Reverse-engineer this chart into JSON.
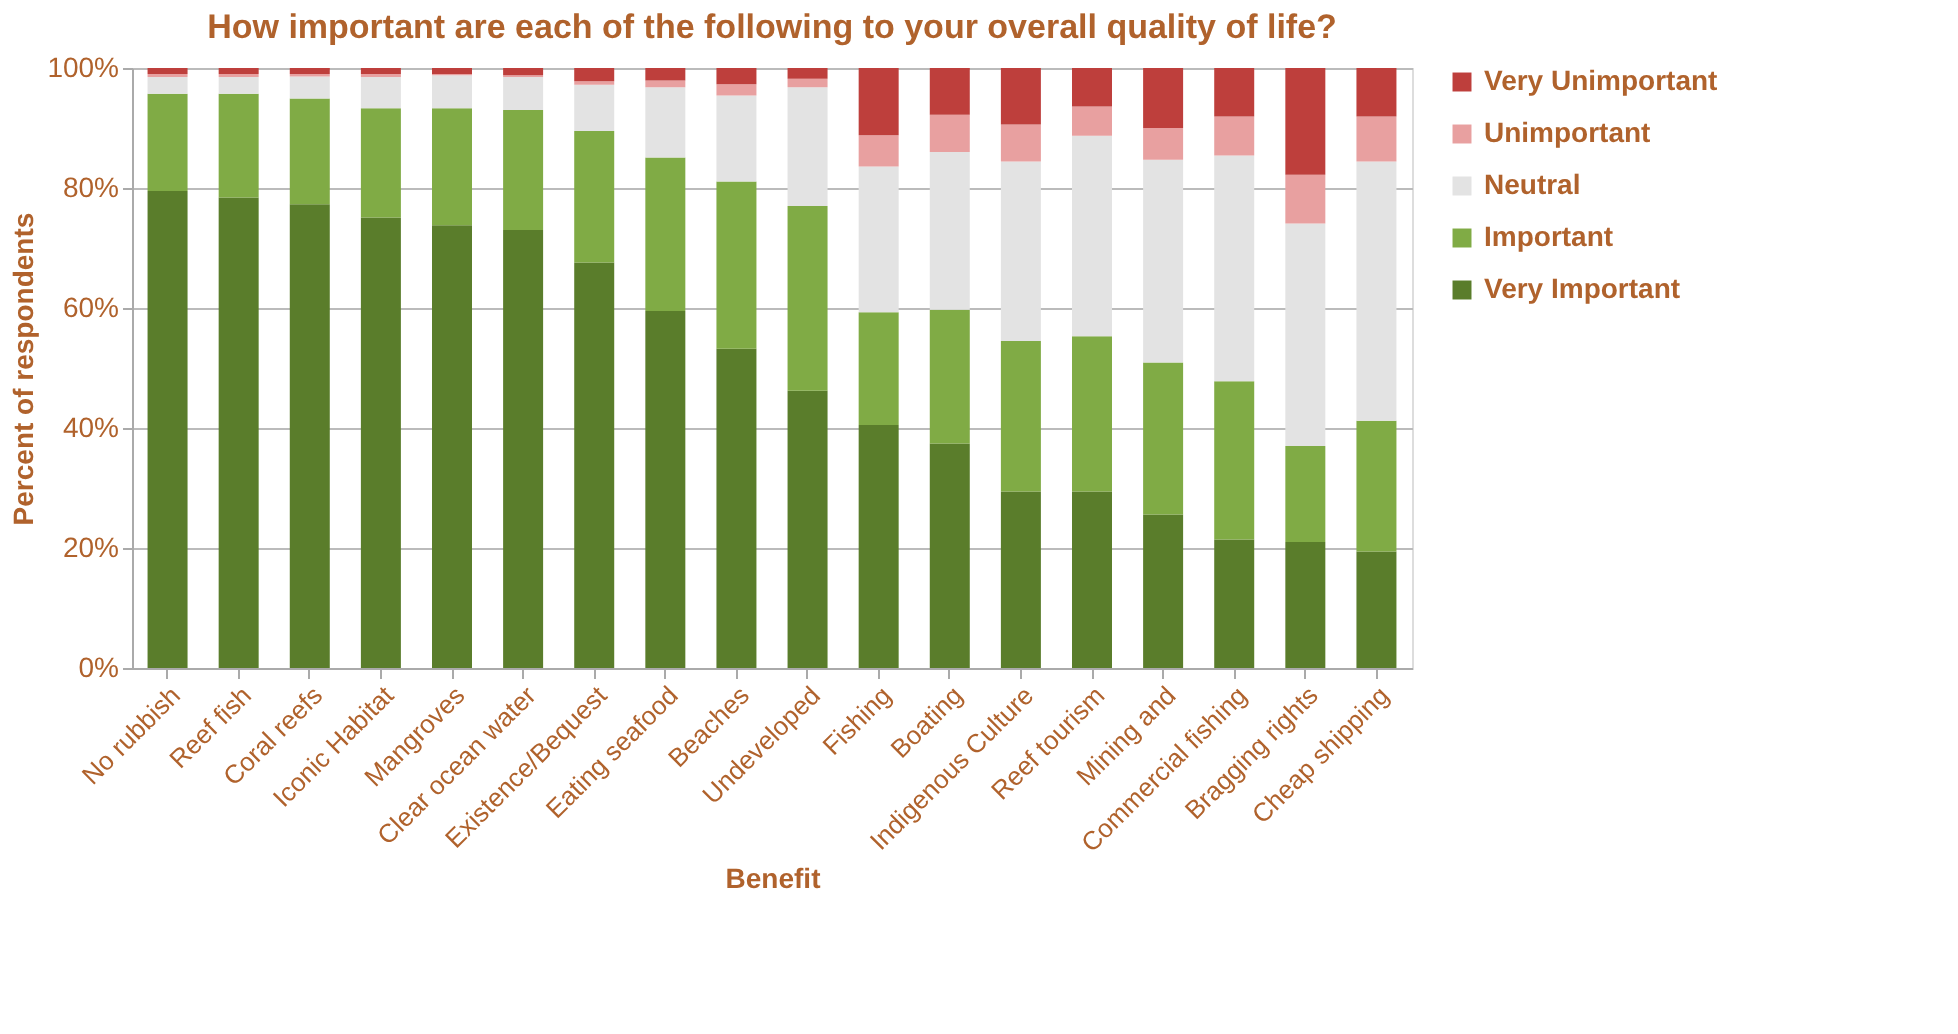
{
  "chart_data": {
    "type": "bar",
    "stacked": true,
    "title": "How important are each of the following to your overall quality of life?",
    "xlabel": "Benefit",
    "ylabel": "Percent of respondents",
    "categories": [
      "No rubbish",
      "Reef fish",
      "Coral reefs",
      "Iconic Habitat",
      "Mangroves",
      "Clear ocean water",
      "Existence/Bequest",
      "Eating seafood",
      "Beaches",
      "Undeveloped",
      "Fishing",
      "Boating",
      "Indigenous Culture",
      "Reef tourism",
      "Mining and",
      "Commercial fishing",
      "Bragging rights",
      "Cheap shipping"
    ],
    "series": [
      {
        "name": "Very Important",
        "color": "#5a7d2b",
        "values": [
          79.5,
          78.4,
          77.3,
          75.1,
          73.8,
          73.0,
          67.6,
          59.5,
          53.2,
          46.2,
          40.5,
          37.4,
          29.4,
          29.4,
          25.6,
          21.4,
          21.0,
          19.4
        ]
      },
      {
        "name": "Important",
        "color": "#80ab45",
        "values": [
          16.2,
          17.3,
          17.6,
          18.2,
          19.5,
          20.0,
          21.9,
          25.6,
          27.9,
          30.8,
          18.8,
          22.3,
          25.1,
          25.9,
          25.3,
          26.4,
          16.0,
          21.8
        ]
      },
      {
        "name": "Neutral",
        "color": "#e3e3e3",
        "values": [
          2.8,
          2.8,
          3.7,
          5.2,
          5.5,
          5.5,
          7.7,
          11.7,
          14.3,
          19.8,
          24.3,
          26.3,
          29.9,
          33.4,
          33.8,
          37.6,
          37.1,
          43.2
        ]
      },
      {
        "name": "Unimportant",
        "color": "#e8a0a0",
        "values": [
          0.5,
          0.5,
          0.4,
          0.5,
          0.2,
          0.3,
          0.6,
          1.1,
          1.9,
          1.4,
          5.2,
          6.2,
          6.2,
          4.9,
          5.3,
          6.5,
          8.1,
          7.5
        ]
      },
      {
        "name": "Very Unimportant",
        "color": "#be3f3c",
        "values": [
          1.0,
          1.0,
          1.0,
          1.0,
          1.0,
          1.2,
          2.2,
          2.1,
          2.7,
          1.8,
          11.2,
          7.8,
          9.4,
          6.4,
          10.0,
          8.1,
          17.8,
          8.1
        ]
      }
    ],
    "ylim": [
      0,
      100
    ],
    "yticks": [
      {
        "value": 0,
        "label": "0%"
      },
      {
        "value": 20,
        "label": "20%"
      },
      {
        "value": 40,
        "label": "40%"
      },
      {
        "value": 60,
        "label": "60%"
      },
      {
        "value": 80,
        "label": "80%"
      },
      {
        "value": 100,
        "label": "100%"
      }
    ],
    "grid": "y",
    "legend": "right"
  }
}
